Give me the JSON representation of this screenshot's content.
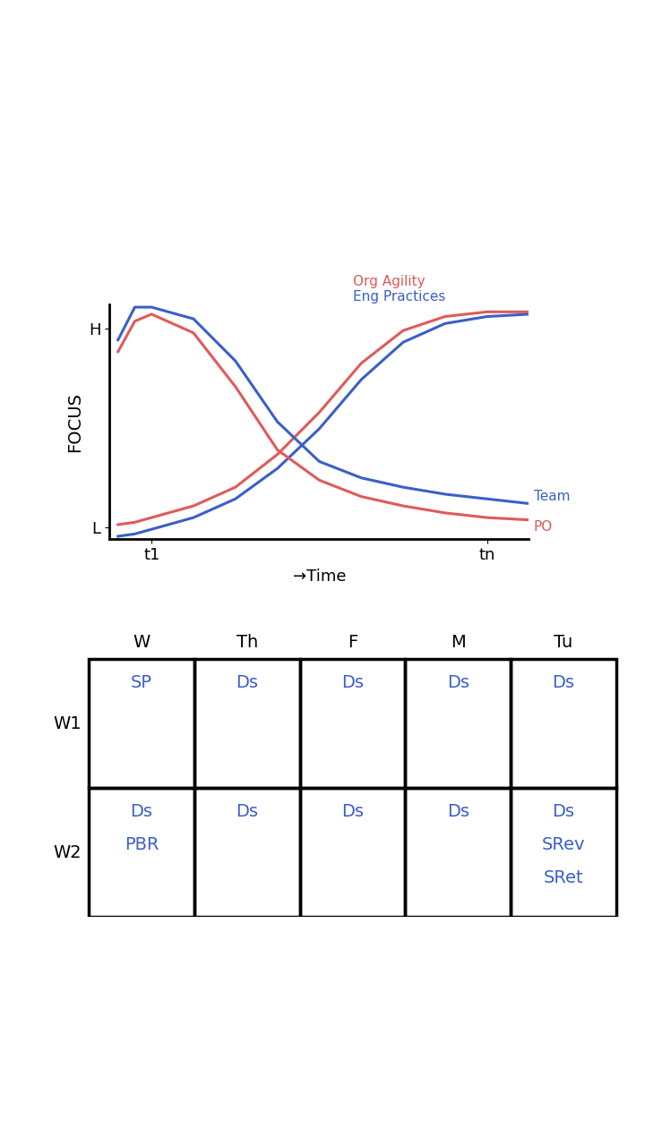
{
  "chart_data": {
    "type": "line",
    "x_label": "→Time",
    "y_label": "FOCUS",
    "x": [
      0.2,
      0.6,
      1,
      2,
      3,
      4,
      5,
      6,
      7,
      8,
      9,
      10
    ],
    "xlim": [
      0,
      10
    ],
    "xticks": [
      {
        "value": 1,
        "label": "t1"
      },
      {
        "value": 9,
        "label": "tn"
      }
    ],
    "ylim": [
      0,
      10
    ],
    "yticks": [
      {
        "value": 0.5,
        "label": "L"
      },
      {
        "value": 9,
        "label": "H"
      }
    ],
    "series": [
      {
        "name": "Org Agility",
        "color": "#e05a5a",
        "values": [
          0.6,
          0.7,
          0.9,
          1.4,
          2.2,
          3.6,
          5.4,
          7.5,
          8.9,
          9.5,
          9.7,
          9.7
        ]
      },
      {
        "name": "Eng Practices",
        "color": "#3a5fc8",
        "values": [
          0.1,
          0.2,
          0.4,
          0.9,
          1.7,
          3.0,
          4.7,
          6.8,
          8.4,
          9.2,
          9.5,
          9.6
        ]
      },
      {
        "name": "Team",
        "color": "#3a5fc8",
        "values": [
          8.5,
          9.9,
          9.9,
          9.4,
          7.6,
          5.0,
          3.3,
          2.6,
          2.2,
          1.9,
          1.7,
          1.5
        ]
      },
      {
        "name": "PO",
        "color": "#e05a5a",
        "values": [
          8.0,
          9.3,
          9.6,
          8.8,
          6.5,
          3.8,
          2.5,
          1.8,
          1.4,
          1.1,
          0.9,
          0.8
        ]
      }
    ]
  },
  "table": {
    "columns": [
      "W",
      "Th",
      "F",
      "M",
      "Tu"
    ],
    "rows": [
      {
        "label": "W1",
        "cells": [
          [
            "SP"
          ],
          [
            "Ds"
          ],
          [
            "Ds"
          ],
          [
            "Ds"
          ],
          [
            "Ds"
          ]
        ]
      },
      {
        "label": "W2",
        "cells": [
          [
            "Ds",
            "PBR"
          ],
          [
            "Ds"
          ],
          [
            "Ds"
          ],
          [
            "Ds"
          ],
          [
            "Ds",
            "SRev",
            "SRet"
          ]
        ]
      }
    ]
  }
}
